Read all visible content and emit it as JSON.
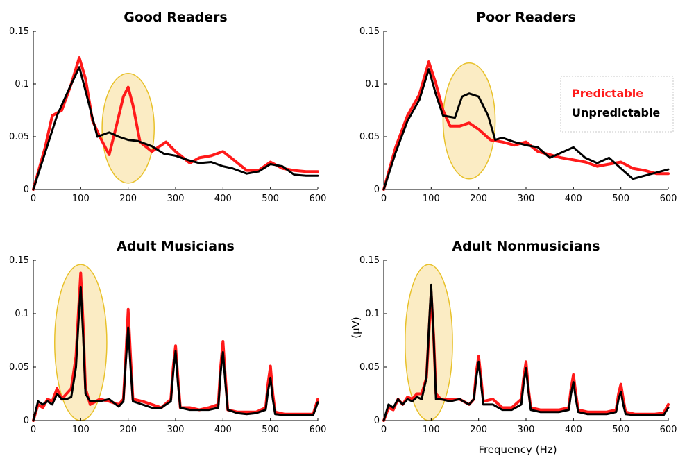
{
  "colors": {
    "predictable": "#ff1a1a",
    "unpredictable": "#000000",
    "highlight_fill": "#fbecc4",
    "highlight_stroke": "#e8c12a",
    "legend_border": "#c8c8c8"
  },
  "figure": {
    "ylabel": "(µV)",
    "xlabel": "Frequency (Hz)"
  },
  "legend": {
    "placement": "top-right of Poor Readers panel",
    "items": [
      {
        "label": "Predictable",
        "color": "#ff1a1a"
      },
      {
        "label": "Unpredictable",
        "color": "#000000"
      }
    ]
  },
  "chart_data": [
    {
      "type": "line",
      "title": "Good Readers",
      "xlim": [
        0,
        600
      ],
      "ylim": [
        0,
        0.15
      ],
      "x_ticks": [
        "0",
        "100",
        "200",
        "300",
        "400",
        "500",
        "600"
      ],
      "y_ticks": [
        "0",
        "0.05",
        "0.1",
        "0.15"
      ],
      "highlight": {
        "center_x": 200,
        "center_y": 0.058,
        "half_width": 55,
        "half_height": 0.052
      },
      "series": [
        {
          "name": "Predictable",
          "x": [
            0,
            25,
            40,
            60,
            80,
            97,
            110,
            125,
            140,
            160,
            175,
            190,
            200,
            210,
            225,
            250,
            280,
            300,
            330,
            350,
            375,
            400,
            420,
            450,
            475,
            500,
            525,
            550,
            575,
            600
          ],
          "y": [
            0,
            0.04,
            0.07,
            0.075,
            0.1,
            0.125,
            0.105,
            0.065,
            0.05,
            0.033,
            0.06,
            0.088,
            0.097,
            0.08,
            0.045,
            0.036,
            0.045,
            0.036,
            0.025,
            0.03,
            0.032,
            0.036,
            0.029,
            0.018,
            0.018,
            0.026,
            0.02,
            0.018,
            0.017,
            0.017
          ]
        },
        {
          "name": "Unpredictable",
          "x": [
            0,
            25,
            50,
            75,
            97,
            115,
            135,
            160,
            180,
            200,
            220,
            250,
            275,
            300,
            325,
            350,
            375,
            400,
            420,
            450,
            475,
            500,
            525,
            550,
            575,
            600
          ],
          "y": [
            0,
            0.035,
            0.07,
            0.095,
            0.116,
            0.085,
            0.05,
            0.054,
            0.05,
            0.047,
            0.046,
            0.041,
            0.034,
            0.032,
            0.028,
            0.025,
            0.026,
            0.022,
            0.02,
            0.015,
            0.017,
            0.024,
            0.022,
            0.014,
            0.013,
            0.013
          ]
        }
      ]
    },
    {
      "type": "line",
      "title": "Poor Readers",
      "xlim": [
        0,
        600
      ],
      "ylim": [
        0,
        0.15
      ],
      "x_ticks": [
        "0",
        "100",
        "200",
        "300",
        "400",
        "500",
        "600"
      ],
      "y_ticks": [
        "0",
        "0.05",
        "0.1",
        "0.15"
      ],
      "highlight": {
        "center_x": 180,
        "center_y": 0.065,
        "half_width": 55,
        "half_height": 0.055
      },
      "series": [
        {
          "name": "Predictable",
          "x": [
            0,
            25,
            50,
            75,
            95,
            110,
            125,
            140,
            160,
            180,
            200,
            225,
            250,
            275,
            300,
            325,
            350,
            375,
            400,
            425,
            450,
            475,
            500,
            525,
            550,
            575,
            600
          ],
          "y": [
            0,
            0.04,
            0.07,
            0.09,
            0.121,
            0.1,
            0.075,
            0.06,
            0.06,
            0.063,
            0.057,
            0.047,
            0.045,
            0.042,
            0.045,
            0.036,
            0.033,
            0.03,
            0.028,
            0.026,
            0.022,
            0.024,
            0.026,
            0.02,
            0.018,
            0.015,
            0.015
          ]
        },
        {
          "name": "Unpredictable",
          "x": [
            0,
            25,
            50,
            75,
            95,
            110,
            125,
            150,
            165,
            180,
            200,
            220,
            235,
            250,
            275,
            300,
            325,
            350,
            375,
            400,
            425,
            450,
            475,
            500,
            525,
            550,
            575,
            600
          ],
          "y": [
            0,
            0.035,
            0.065,
            0.085,
            0.114,
            0.09,
            0.07,
            0.068,
            0.088,
            0.091,
            0.088,
            0.07,
            0.047,
            0.049,
            0.045,
            0.042,
            0.04,
            0.03,
            0.035,
            0.04,
            0.03,
            0.025,
            0.03,
            0.02,
            0.01,
            0.013,
            0.016,
            0.019
          ]
        }
      ]
    },
    {
      "type": "line",
      "title": "Adult Musicians",
      "xlim": [
        0,
        600
      ],
      "ylim": [
        0,
        0.15
      ],
      "x_ticks": [
        "0",
        "100",
        "200",
        "300",
        "400",
        "500",
        "600"
      ],
      "y_ticks": [
        "0",
        "0.05",
        "0.1",
        "0.15"
      ],
      "highlight": {
        "center_x": 100,
        "center_y": 0.073,
        "half_width": 55,
        "half_height": 0.073
      },
      "series": [
        {
          "name": "Predictable",
          "x": [
            0,
            10,
            20,
            30,
            40,
            50,
            60,
            70,
            80,
            90,
            95,
            100,
            105,
            110,
            120,
            140,
            160,
            180,
            190,
            195,
            200,
            205,
            210,
            230,
            250,
            270,
            290,
            295,
            300,
            305,
            310,
            330,
            350,
            370,
            390,
            395,
            400,
            405,
            410,
            430,
            450,
            470,
            490,
            495,
            500,
            505,
            510,
            530,
            550,
            570,
            590,
            600
          ],
          "y": [
            0,
            0.015,
            0.012,
            0.02,
            0.018,
            0.03,
            0.02,
            0.025,
            0.03,
            0.06,
            0.1,
            0.138,
            0.09,
            0.03,
            0.015,
            0.02,
            0.018,
            0.015,
            0.02,
            0.06,
            0.104,
            0.06,
            0.02,
            0.018,
            0.015,
            0.012,
            0.02,
            0.05,
            0.07,
            0.04,
            0.012,
            0.012,
            0.01,
            0.012,
            0.015,
            0.05,
            0.074,
            0.04,
            0.01,
            0.008,
            0.008,
            0.008,
            0.012,
            0.035,
            0.051,
            0.025,
            0.008,
            0.006,
            0.006,
            0.006,
            0.006,
            0.02
          ]
        },
        {
          "name": "Unpredictable",
          "x": [
            0,
            10,
            20,
            30,
            40,
            50,
            60,
            70,
            80,
            90,
            95,
            100,
            105,
            110,
            120,
            140,
            160,
            180,
            190,
            195,
            200,
            205,
            210,
            230,
            250,
            270,
            290,
            295,
            300,
            305,
            310,
            330,
            350,
            370,
            390,
            395,
            400,
            405,
            410,
            430,
            450,
            470,
            490,
            495,
            500,
            505,
            510,
            530,
            550,
            570,
            590,
            600
          ],
          "y": [
            0,
            0.018,
            0.015,
            0.018,
            0.015,
            0.025,
            0.02,
            0.02,
            0.022,
            0.05,
            0.09,
            0.125,
            0.08,
            0.025,
            0.018,
            0.018,
            0.02,
            0.013,
            0.018,
            0.055,
            0.087,
            0.05,
            0.018,
            0.015,
            0.012,
            0.012,
            0.018,
            0.045,
            0.065,
            0.035,
            0.012,
            0.01,
            0.01,
            0.01,
            0.012,
            0.045,
            0.064,
            0.035,
            0.01,
            0.007,
            0.006,
            0.007,
            0.01,
            0.028,
            0.04,
            0.02,
            0.006,
            0.005,
            0.005,
            0.005,
            0.005,
            0.017
          ]
        }
      ]
    },
    {
      "type": "line",
      "title": "Adult Nonmusicians",
      "xlim": [
        0,
        600
      ],
      "ylim": [
        0,
        0.15
      ],
      "x_ticks": [
        "0",
        "100",
        "200",
        "300",
        "400",
        "500",
        "600"
      ],
      "y_ticks": [
        "0",
        "0.05",
        "0.1",
        "0.15"
      ],
      "highlight": {
        "center_x": 95,
        "center_y": 0.073,
        "half_width": 50,
        "half_height": 0.073
      },
      "series": [
        {
          "name": "Predictable",
          "x": [
            0,
            10,
            20,
            30,
            40,
            50,
            60,
            70,
            80,
            90,
            95,
            100,
            105,
            110,
            120,
            140,
            160,
            180,
            190,
            195,
            200,
            205,
            210,
            230,
            250,
            270,
            290,
            295,
            300,
            305,
            310,
            330,
            350,
            370,
            390,
            395,
            400,
            405,
            410,
            430,
            450,
            470,
            490,
            495,
            500,
            505,
            510,
            530,
            550,
            570,
            590,
            600
          ],
          "y": [
            0,
            0.012,
            0.01,
            0.02,
            0.015,
            0.022,
            0.02,
            0.025,
            0.025,
            0.04,
            0.08,
            0.12,
            0.08,
            0.025,
            0.02,
            0.02,
            0.02,
            0.015,
            0.02,
            0.045,
            0.06,
            0.04,
            0.018,
            0.02,
            0.012,
            0.012,
            0.02,
            0.04,
            0.055,
            0.03,
            0.012,
            0.01,
            0.01,
            0.01,
            0.012,
            0.03,
            0.043,
            0.025,
            0.01,
            0.008,
            0.008,
            0.008,
            0.01,
            0.025,
            0.034,
            0.02,
            0.008,
            0.006,
            0.006,
            0.006,
            0.007,
            0.015
          ]
        },
        {
          "name": "Unpredictable",
          "x": [
            0,
            10,
            20,
            30,
            40,
            50,
            60,
            70,
            80,
            90,
            95,
            100,
            105,
            110,
            120,
            140,
            160,
            180,
            190,
            195,
            200,
            205,
            210,
            230,
            250,
            270,
            290,
            295,
            300,
            305,
            310,
            330,
            350,
            370,
            390,
            395,
            400,
            405,
            410,
            430,
            450,
            470,
            490,
            495,
            500,
            505,
            510,
            530,
            550,
            570,
            590,
            600
          ],
          "y": [
            0,
            0.015,
            0.012,
            0.02,
            0.015,
            0.02,
            0.018,
            0.022,
            0.02,
            0.04,
            0.085,
            0.127,
            0.08,
            0.02,
            0.02,
            0.018,
            0.02,
            0.015,
            0.02,
            0.04,
            0.055,
            0.035,
            0.015,
            0.015,
            0.01,
            0.01,
            0.015,
            0.035,
            0.049,
            0.028,
            0.01,
            0.008,
            0.008,
            0.008,
            0.01,
            0.025,
            0.036,
            0.02,
            0.008,
            0.006,
            0.006,
            0.006,
            0.008,
            0.02,
            0.027,
            0.015,
            0.006,
            0.005,
            0.005,
            0.005,
            0.005,
            0.012
          ]
        }
      ]
    }
  ]
}
